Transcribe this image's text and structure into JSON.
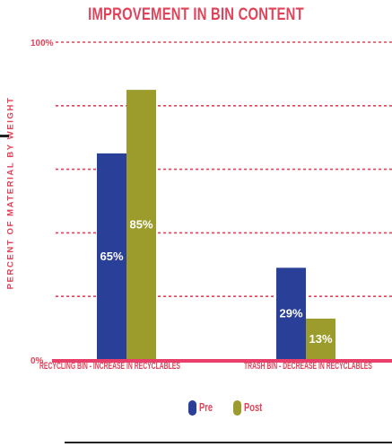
{
  "chart_data": {
    "type": "bar",
    "title": "IMPROVEMENT IN BIN CONTENT",
    "ylabel": "PERCENT OF MATERIAL BY WEIGHT",
    "xlabel": "",
    "ylim": [
      0,
      100
    ],
    "yticks": [
      {
        "value": 100,
        "label": "100%"
      },
      {
        "value": 0,
        "label": "0%"
      }
    ],
    "gridlines": [
      80,
      60,
      40,
      20
    ],
    "grid": true,
    "categories": [
      "RECYCLING BIN - INCREASE IN RECYCLABLES",
      "TRASH BIN - DECREASE IN RECYCLABLES"
    ],
    "series": [
      {
        "name": "Pre",
        "values": [
          65,
          29
        ],
        "labels": [
          "65%",
          "29%"
        ],
        "color": "#2a3f97"
      },
      {
        "name": "Post",
        "values": [
          85,
          13
        ],
        "labels": [
          "85%",
          "13%"
        ],
        "color": "#9c9c2c"
      }
    ],
    "legend": "bottom-center",
    "colors": {
      "accent": "#e0435a",
      "baseline": "#e8406a",
      "grid": "#e0435a"
    }
  }
}
